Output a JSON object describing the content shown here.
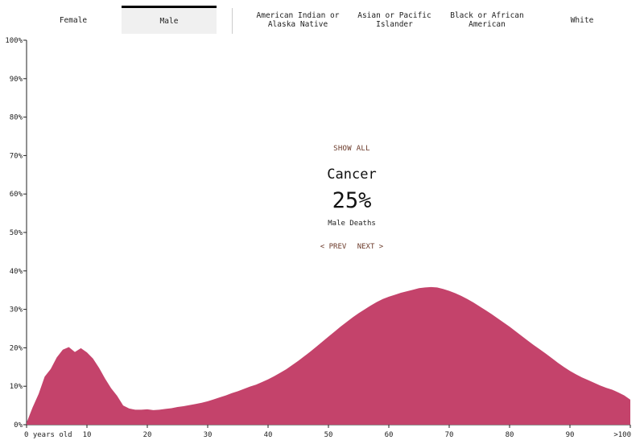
{
  "tabs": [
    {
      "label": "Female",
      "active": false
    },
    {
      "label": "Male",
      "active": true
    },
    {
      "label": "American Indian or\nAlaska Native",
      "active": false
    },
    {
      "label": "Asian or Pacific\nIslander",
      "active": false
    },
    {
      "label": "Black or African\nAmerican",
      "active": false
    },
    {
      "label": "White",
      "active": false
    }
  ],
  "center": {
    "show_all": "SHOW ALL",
    "cause": "Cancer",
    "percent": "25%",
    "subtitle": "Male Deaths",
    "prev": "< PREV",
    "next": "NEXT >"
  },
  "colors": {
    "area": "#c4436b",
    "axis": "#222222",
    "link": "#6b3a2a"
  },
  "chart_data": {
    "type": "area",
    "title": "",
    "xlabel": "",
    "ylabel": "",
    "ylim": [
      0,
      100
    ],
    "xlim": [
      0,
      100
    ],
    "y_ticks": [
      "0%",
      "10%",
      "20%",
      "30%",
      "40%",
      "50%",
      "60%",
      "70%",
      "80%",
      "90%",
      "100%"
    ],
    "x_ticks": [
      {
        "x": 0,
        "label": "0 years old"
      },
      {
        "x": 10,
        "label": "10"
      },
      {
        "x": 20,
        "label": "20"
      },
      {
        "x": 30,
        "label": "30"
      },
      {
        "x": 40,
        "label": "40"
      },
      {
        "x": 50,
        "label": "50"
      },
      {
        "x": 60,
        "label": "60"
      },
      {
        "x": 70,
        "label": "70"
      },
      {
        "x": 80,
        "label": "80"
      },
      {
        "x": 90,
        "label": "90"
      },
      {
        "x": 100,
        "label": ">100"
      }
    ],
    "series": [
      {
        "x": [
          0,
          1,
          2,
          3,
          4,
          5,
          6,
          7,
          8,
          9,
          10,
          11,
          12,
          13,
          14,
          15,
          16,
          17,
          18,
          19,
          20,
          21,
          22,
          23,
          24,
          25,
          26,
          27,
          28,
          29,
          30,
          31,
          32,
          33,
          34,
          35,
          36,
          37,
          38,
          39,
          40,
          41,
          42,
          43,
          44,
          45,
          46,
          47,
          48,
          49,
          50,
          51,
          52,
          53,
          54,
          55,
          56,
          57,
          58,
          59,
          60,
          61,
          62,
          63,
          64,
          65,
          66,
          67,
          68,
          69,
          70,
          71,
          72,
          73,
          74,
          75,
          76,
          77,
          78,
          79,
          80,
          81,
          82,
          83,
          84,
          85,
          86,
          87,
          88,
          89,
          90,
          91,
          92,
          93,
          94,
          95,
          96,
          97,
          98,
          99,
          100
        ],
        "values": [
          0.5,
          4.5,
          8,
          12.5,
          14.5,
          17.5,
          19.5,
          20.2,
          18.9,
          19.9,
          18.8,
          17.2,
          14.8,
          12,
          9.5,
          7.5,
          5,
          4.2,
          3.9,
          3.9,
          4,
          3.8,
          3.9,
          4.1,
          4.3,
          4.6,
          4.8,
          5.1,
          5.4,
          5.7,
          6.1,
          6.6,
          7.1,
          7.6,
          8.2,
          8.7,
          9.3,
          9.9,
          10.4,
          11.1,
          11.8,
          12.6,
          13.5,
          14.4,
          15.5,
          16.6,
          17.8,
          19,
          20.3,
          21.6,
          22.9,
          24.2,
          25.5,
          26.7,
          27.9,
          29,
          30,
          31,
          31.9,
          32.7,
          33.3,
          33.8,
          34.3,
          34.7,
          35.1,
          35.5,
          35.7,
          35.8,
          35.7,
          35.3,
          34.8,
          34.2,
          33.5,
          32.7,
          31.8,
          30.8,
          29.8,
          28.8,
          27.7,
          26.6,
          25.5,
          24.3,
          23.1,
          21.9,
          20.7,
          19.6,
          18.5,
          17.3,
          16.1,
          15,
          14,
          13.1,
          12.3,
          11.6,
          10.9,
          10.2,
          9.6,
          9.1,
          8.4,
          7.6,
          6.5
        ]
      }
    ]
  }
}
